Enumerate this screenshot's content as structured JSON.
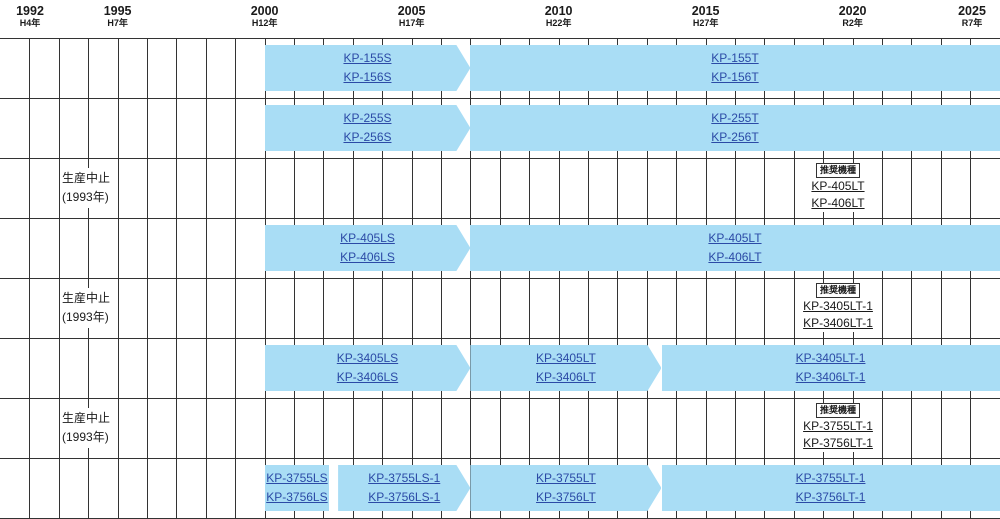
{
  "years": [
    {
      "year": "1992",
      "era": "H4年"
    },
    {
      "year": "1995",
      "era": "H7年"
    },
    {
      "year": "2000",
      "era": "H12年"
    },
    {
      "year": "2005",
      "era": "H17年"
    },
    {
      "year": "2010",
      "era": "H22年"
    },
    {
      "year": "2015",
      "era": "H27年"
    },
    {
      "year": "2020",
      "era": "R2年"
    },
    {
      "year": "2025",
      "era": "R7年"
    }
  ],
  "rows": [
    {
      "bars": [
        {
          "start": 2000,
          "end": 2007,
          "arrow": true,
          "models": [
            "KP-155S",
            "KP-156S"
          ]
        },
        {
          "start": 2007,
          "end": 2025,
          "arrow": false,
          "models": [
            "KP-155T",
            "KP-156T"
          ]
        }
      ]
    },
    {
      "bars": [
        {
          "start": 2000,
          "end": 2007,
          "arrow": true,
          "models": [
            "KP-255S",
            "KP-256S"
          ]
        },
        {
          "start": 2007,
          "end": 2025,
          "arrow": false,
          "models": [
            "KP-255T",
            "KP-256T"
          ]
        }
      ]
    },
    {
      "discontinued": [
        "生産中止",
        "(1993年)"
      ],
      "recommended": {
        "badge": "推奨機種",
        "models": [
          "KP-405LT",
          "KP-406LT"
        ]
      }
    },
    {
      "bars": [
        {
          "start": 2000,
          "end": 2007,
          "arrow": true,
          "models": [
            "KP-405LS",
            "KP-406LS"
          ]
        },
        {
          "start": 2007,
          "end": 2025,
          "arrow": false,
          "models": [
            "KP-405LT",
            "KP-406LT"
          ]
        }
      ]
    },
    {
      "discontinued": [
        "生産中止",
        "(1993年)"
      ],
      "recommended": {
        "badge": "推奨機種",
        "models": [
          "KP-3405LT-1",
          "KP-3406LT-1"
        ]
      }
    },
    {
      "bars": [
        {
          "start": 2000,
          "end": 2007,
          "arrow": true,
          "models": [
            "KP-3405LS",
            "KP-3406LS"
          ]
        },
        {
          "start": 2007,
          "end": 2013.5,
          "arrow": true,
          "models": [
            "KP-3405LT",
            "KP-3406LT"
          ]
        },
        {
          "start": 2013.5,
          "end": 2025,
          "arrow": false,
          "models": [
            "KP-3405LT-1",
            "KP-3406LT-1"
          ]
        }
      ]
    },
    {
      "discontinued": [
        "生産中止",
        "(1993年)"
      ],
      "recommended": {
        "badge": "推奨機種",
        "models": [
          "KP-3755LT-1",
          "KP-3756LT-1"
        ]
      }
    },
    {
      "bars": [
        {
          "start": 2000,
          "end": 2002.2,
          "arrow": false,
          "models": [
            "KP-3755LS",
            "KP-3756LS"
          ]
        },
        {
          "start": 2002.5,
          "end": 2007,
          "arrow": true,
          "models": [
            "KP-3755LS-1",
            "KP-3756LS-1"
          ]
        },
        {
          "start": 2007,
          "end": 2013.5,
          "arrow": true,
          "models": [
            "KP-3755LT",
            "KP-3756LT"
          ]
        },
        {
          "start": 2013.5,
          "end": 2025,
          "arrow": false,
          "models": [
            "KP-3755LT-1",
            "KP-3756LT-1"
          ]
        }
      ]
    }
  ]
}
